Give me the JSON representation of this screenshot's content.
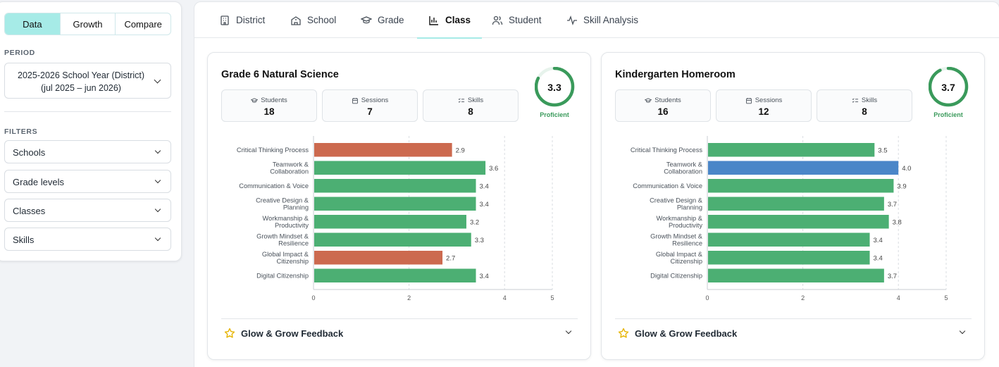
{
  "sidebar": {
    "view_tabs": [
      {
        "label": "Data",
        "active": true
      },
      {
        "label": "Growth",
        "active": false
      },
      {
        "label": "Compare",
        "active": false
      }
    ],
    "period_label": "PERIOD",
    "period_value_line1": "2025-2026 School Year (District)",
    "period_value_line2": "(jul 2025 – jun 2026)",
    "filters_label": "FILTERS",
    "filters": [
      "Schools",
      "Grade levels",
      "Classes",
      "Skills"
    ]
  },
  "tabs": [
    {
      "label": "District",
      "icon": "building-icon",
      "active": false
    },
    {
      "label": "School",
      "icon": "school-icon",
      "active": false
    },
    {
      "label": "Grade",
      "icon": "graduation-cap-icon",
      "active": false
    },
    {
      "label": "Class",
      "icon": "bar-chart-icon",
      "active": true
    },
    {
      "label": "Student",
      "icon": "users-icon",
      "active": false
    },
    {
      "label": "Skill Analysis",
      "icon": "activity-icon",
      "active": false
    }
  ],
  "colors": {
    "accent": "#a6ebe7",
    "bar_green": "#4caf73",
    "bar_red": "#cc6a4f",
    "bar_blue": "#4a86c8",
    "proficient": "#3a9a5b"
  },
  "stat_labels": {
    "students": "Students",
    "sessions": "Sessions",
    "skills": "Skills"
  },
  "feedback_label": "Glow & Grow Feedback",
  "cards": [
    {
      "title": "Grade 6 Natural Science",
      "students": "18",
      "sessions": "7",
      "skills": "8",
      "score": "3.3",
      "score_max": 4,
      "level": "Proficient",
      "chart_data": {
        "type": "bar",
        "orientation": "horizontal",
        "categories": [
          [
            "Critical Thinking Process"
          ],
          [
            "Teamwork &",
            "Collaboration"
          ],
          [
            "Communication & Voice"
          ],
          [
            "Creative Design &",
            "Planning"
          ],
          [
            "Workmanship &",
            "Productivity"
          ],
          [
            "Growth Mindset &",
            "Resilience"
          ],
          [
            "Global Impact &",
            "Citizenship"
          ],
          [
            "Digital Citizenship"
          ]
        ],
        "values": [
          2.9,
          3.6,
          3.4,
          3.4,
          3.2,
          3.3,
          2.7,
          3.4
        ],
        "value_labels": [
          "2.9",
          "3.6",
          "3.4",
          "3.4",
          "3.2",
          "3.3",
          "2.7",
          "3.4"
        ],
        "bar_colors": [
          "red",
          "green",
          "green",
          "green",
          "green",
          "green",
          "red",
          "green"
        ],
        "x_ticks": [
          "0",
          "2",
          "4",
          "5"
        ],
        "tick_values": [
          0,
          2,
          4,
          5
        ],
        "xlim": [
          0,
          5
        ],
        "grid": true
      }
    },
    {
      "title": "Kindergarten Homeroom",
      "students": "16",
      "sessions": "12",
      "skills": "8",
      "score": "3.7",
      "score_max": 4,
      "level": "Proficient",
      "chart_data": {
        "type": "bar",
        "orientation": "horizontal",
        "categories": [
          [
            "Critical Thinking Process"
          ],
          [
            "Teamwork &",
            "Collaboration"
          ],
          [
            "Communication & Voice"
          ],
          [
            "Creative Design &",
            "Planning"
          ],
          [
            "Workmanship &",
            "Productivity"
          ],
          [
            "Growth Mindset &",
            "Resilience"
          ],
          [
            "Global Impact &",
            "Citizenship"
          ],
          [
            "Digital Citizenship"
          ]
        ],
        "values": [
          3.5,
          4.0,
          3.9,
          3.7,
          3.8,
          3.4,
          3.4,
          3.7
        ],
        "value_labels": [
          "3.5",
          "4.0",
          "3.9",
          "3.7",
          "3.8",
          "3.4",
          "3.4",
          "3.7"
        ],
        "bar_colors": [
          "green",
          "blue",
          "green",
          "green",
          "green",
          "green",
          "green",
          "green"
        ],
        "x_ticks": [
          "0",
          "2",
          "4",
          "5"
        ],
        "tick_values": [
          0,
          2,
          4,
          5
        ],
        "xlim": [
          0,
          5
        ],
        "grid": true
      }
    }
  ]
}
